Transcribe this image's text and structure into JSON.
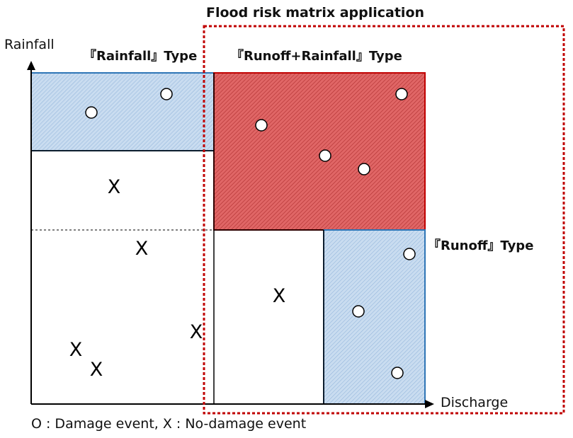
{
  "title": "Flood risk matrix application",
  "axes": {
    "y_label": "Rainfall",
    "x_label": "Discharge"
  },
  "regions": {
    "rainfall_type": "『Rainfall』Type",
    "runoff_rainfall_type": "『Runoff+Rainfall』Type",
    "runoff_type": "『Runoff』Type"
  },
  "legend": "O : Damage event, X : No-damage event",
  "markers": {
    "damage_symbol": "O",
    "no_damage_symbol": "X"
  },
  "colors": {
    "blue_fill": "#c9dcf0",
    "blue_border": "#2e75b6",
    "red_fill": "#e06666",
    "red_border": "#c00000",
    "matrix_border": "#c00000"
  }
}
